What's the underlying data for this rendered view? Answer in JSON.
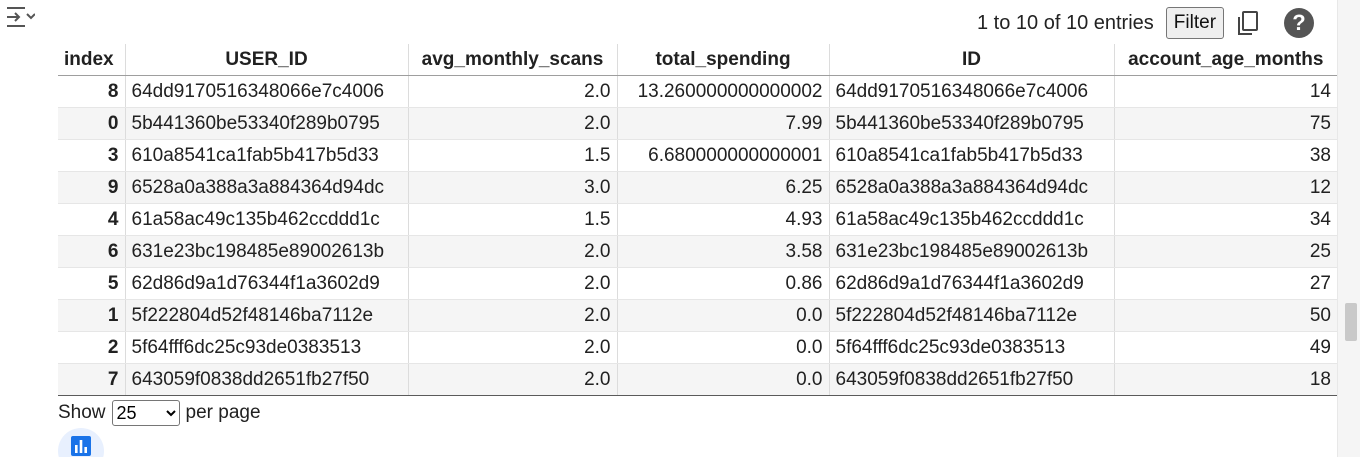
{
  "header": {
    "entries_text": "1 to 10 of 10 entries",
    "filter_label": "Filter",
    "help_label": "?"
  },
  "table": {
    "columns": [
      "index",
      "USER_ID",
      "avg_monthly_scans",
      "total_spending",
      "ID",
      "account_age_months"
    ],
    "rows": [
      [
        "8",
        "64dd9170516348066e7c4006",
        "2.0",
        "13.260000000000002",
        "64dd9170516348066e7c4006",
        "14"
      ],
      [
        "0",
        "5b441360be53340f289b0795",
        "2.0",
        "7.99",
        "5b441360be53340f289b0795",
        "75"
      ],
      [
        "3",
        "610a8541ca1fab5b417b5d33",
        "1.5",
        "6.680000000000001",
        "610a8541ca1fab5b417b5d33",
        "38"
      ],
      [
        "9",
        "6528a0a388a3a884364d94dc",
        "3.0",
        "6.25",
        "6528a0a388a3a884364d94dc",
        "12"
      ],
      [
        "4",
        "61a58ac49c135b462ccddd1c",
        "1.5",
        "4.93",
        "61a58ac49c135b462ccddd1c",
        "34"
      ],
      [
        "6",
        "631e23bc198485e89002613b",
        "2.0",
        "3.58",
        "631e23bc198485e89002613b",
        "25"
      ],
      [
        "5",
        "62d86d9a1d76344f1a3602d9",
        "2.0",
        "0.86",
        "62d86d9a1d76344f1a3602d9",
        "27"
      ],
      [
        "1",
        "5f222804d52f48146ba7112e",
        "2.0",
        "0.0",
        "5f222804d52f48146ba7112e",
        "50"
      ],
      [
        "2",
        "5f64fff6dc25c93de0383513",
        "2.0",
        "0.0",
        "5f64fff6dc25c93de0383513",
        "49"
      ],
      [
        "7",
        "643059f0838dd2651fb27f50",
        "2.0",
        "0.0",
        "643059f0838dd2651fb27f50",
        "18"
      ]
    ]
  },
  "footer": {
    "show_label": "Show",
    "page_size": "25",
    "page_size_options": [
      "25"
    ],
    "per_page_label": "per page"
  },
  "icons": {
    "left": "collapse-toggle-icon",
    "copy": "copy-icon",
    "help": "help-icon",
    "chart": "bar-chart-icon"
  },
  "colors": {
    "chart_accent": "#1a73e8",
    "chart_bg": "#e8f0fe",
    "help_bg": "#555555"
  }
}
